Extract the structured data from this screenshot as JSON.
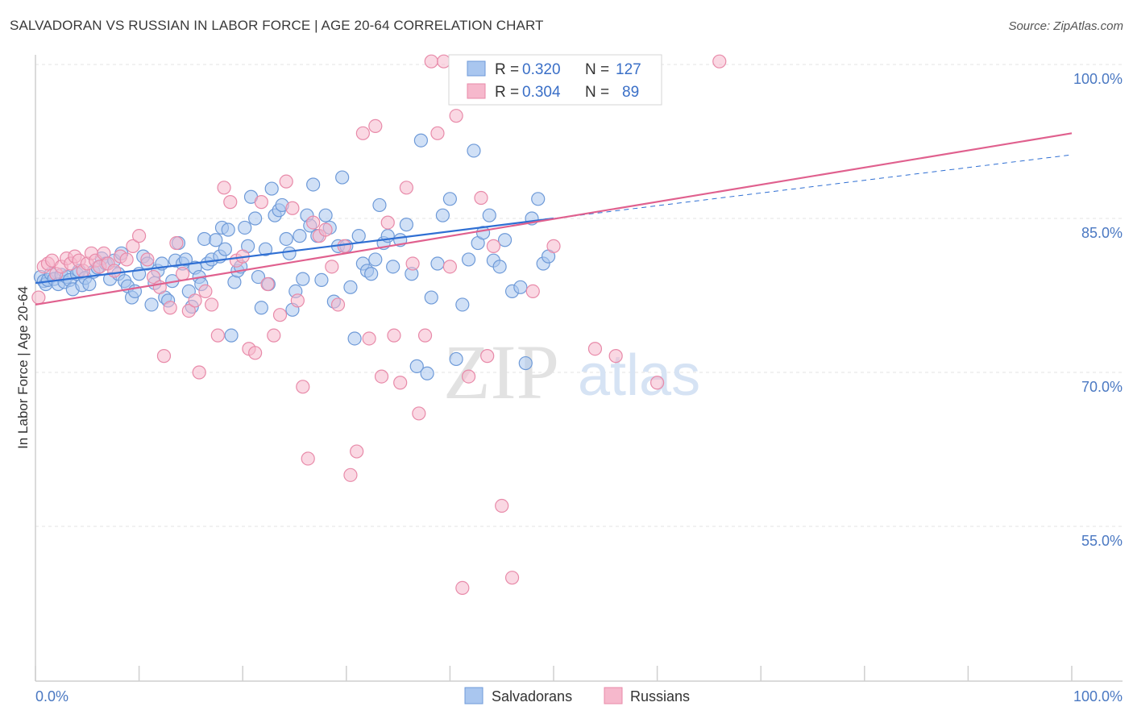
{
  "header": {
    "title": "SALVADORAN VS RUSSIAN IN LABOR FORCE | AGE 20-64 CORRELATION CHART",
    "source": "Source: ZipAtlas.com"
  },
  "watermark": {
    "zip": "ZIP",
    "atlas": "atlas"
  },
  "chart_data": {
    "type": "scatter",
    "ylabel": "In Labor Force | Age 20-64",
    "xlim": [
      0,
      100
    ],
    "ylim": [
      41,
      101
    ],
    "x_tick_labels": [
      "0.0%",
      "100.0%"
    ],
    "y_ticks": [
      55,
      70,
      85,
      100
    ],
    "y_tick_labels": [
      "55.0%",
      "70.0%",
      "85.0%",
      "100.0%"
    ],
    "grid": true,
    "legend_position": "top-center",
    "legend": [
      {
        "name": "Salvadorans",
        "r_label": "R =",
        "r_value": "0.320",
        "n_label": "N =",
        "n_value": "127"
      },
      {
        "name": "Russians",
        "r_label": "R =",
        "r_value": "0.304",
        "n_label": "N =",
        "n_value": "89"
      }
    ],
    "colors": {
      "Salvadorans": {
        "fill": "#a9c6ef",
        "stroke": "#6e9ad8",
        "line": "#2f6fd3"
      },
      "Russians": {
        "fill": "#f6b8cc",
        "stroke": "#e88aa9",
        "line": "#e0608e"
      }
    },
    "series": [
      {
        "name": "Salvadorans",
        "trend": {
          "x0": 0,
          "y0": 78.7,
          "x1": 50,
          "y1": 85.0,
          "dash_to_x": 100,
          "dash_to_y": 91.2
        },
        "points": [
          [
            0.5,
            79.3
          ],
          [
            0.8,
            78.9
          ],
          [
            1.0,
            78.6
          ],
          [
            1.2,
            79.0
          ],
          [
            1.5,
            79.6
          ],
          [
            1.8,
            79.1
          ],
          [
            2.2,
            78.6
          ],
          [
            2.5,
            79.5
          ],
          [
            2.8,
            78.8
          ],
          [
            3.0,
            79.3
          ],
          [
            3.3,
            79.0
          ],
          [
            3.6,
            78.1
          ],
          [
            4.0,
            79.6
          ],
          [
            4.2,
            79.9
          ],
          [
            4.5,
            78.5
          ],
          [
            4.8,
            79.2
          ],
          [
            5.2,
            78.6
          ],
          [
            5.6,
            79.8
          ],
          [
            6.0,
            80.2
          ],
          [
            6.4,
            81.1
          ],
          [
            6.8,
            80.6
          ],
          [
            7.2,
            79.1
          ],
          [
            7.6,
            80.9
          ],
          [
            8.0,
            79.6
          ],
          [
            8.3,
            81.6
          ],
          [
            8.6,
            78.9
          ],
          [
            8.9,
            78.4
          ],
          [
            9.3,
            77.3
          ],
          [
            9.6,
            77.9
          ],
          [
            10.0,
            79.6
          ],
          [
            10.4,
            81.3
          ],
          [
            10.8,
            80.6
          ],
          [
            11.2,
            76.6
          ],
          [
            11.5,
            78.7
          ],
          [
            11.8,
            79.9
          ],
          [
            12.2,
            80.6
          ],
          [
            12.5,
            77.3
          ],
          [
            12.8,
            77.0
          ],
          [
            13.2,
            78.9
          ],
          [
            13.5,
            80.9
          ],
          [
            13.8,
            82.6
          ],
          [
            14.2,
            80.6
          ],
          [
            14.5,
            81.0
          ],
          [
            14.8,
            77.9
          ],
          [
            15.1,
            76.4
          ],
          [
            15.4,
            80.2
          ],
          [
            15.8,
            79.3
          ],
          [
            16.0,
            78.6
          ],
          [
            16.3,
            83.0
          ],
          [
            16.6,
            80.6
          ],
          [
            17.0,
            81.0
          ],
          [
            17.4,
            82.9
          ],
          [
            17.8,
            81.3
          ],
          [
            18.0,
            84.1
          ],
          [
            18.3,
            82.0
          ],
          [
            18.6,
            83.9
          ],
          [
            18.9,
            73.6
          ],
          [
            19.2,
            78.8
          ],
          [
            19.5,
            79.9
          ],
          [
            19.8,
            80.3
          ],
          [
            20.2,
            84.1
          ],
          [
            20.5,
            82.3
          ],
          [
            20.8,
            87.1
          ],
          [
            21.2,
            85.0
          ],
          [
            21.5,
            79.3
          ],
          [
            21.8,
            76.3
          ],
          [
            22.2,
            82.0
          ],
          [
            22.5,
            78.6
          ],
          [
            22.8,
            87.9
          ],
          [
            23.1,
            85.3
          ],
          [
            23.5,
            85.8
          ],
          [
            23.8,
            86.3
          ],
          [
            24.2,
            83.0
          ],
          [
            24.5,
            81.6
          ],
          [
            24.8,
            76.1
          ],
          [
            25.1,
            77.9
          ],
          [
            25.5,
            83.3
          ],
          [
            25.8,
            79.1
          ],
          [
            26.2,
            85.3
          ],
          [
            26.5,
            84.3
          ],
          [
            26.8,
            88.3
          ],
          [
            27.2,
            83.3
          ],
          [
            27.6,
            79.0
          ],
          [
            28.0,
            85.3
          ],
          [
            28.4,
            84.1
          ],
          [
            28.8,
            76.9
          ],
          [
            29.2,
            82.3
          ],
          [
            29.6,
            89.0
          ],
          [
            30.0,
            82.3
          ],
          [
            30.4,
            78.3
          ],
          [
            30.8,
            73.3
          ],
          [
            31.2,
            83.3
          ],
          [
            31.6,
            80.6
          ],
          [
            32.0,
            79.9
          ],
          [
            32.4,
            79.6
          ],
          [
            32.8,
            81.0
          ],
          [
            33.2,
            86.3
          ],
          [
            33.6,
            82.6
          ],
          [
            34.0,
            83.3
          ],
          [
            34.5,
            80.3
          ],
          [
            35.2,
            82.9
          ],
          [
            35.8,
            84.4
          ],
          [
            36.3,
            79.6
          ],
          [
            36.8,
            70.6
          ],
          [
            37.2,
            92.6
          ],
          [
            37.8,
            69.9
          ],
          [
            38.2,
            77.3
          ],
          [
            38.8,
            80.6
          ],
          [
            39.3,
            85.3
          ],
          [
            40.0,
            86.9
          ],
          [
            40.6,
            71.3
          ],
          [
            41.2,
            76.6
          ],
          [
            41.8,
            81.0
          ],
          [
            42.3,
            91.6
          ],
          [
            42.7,
            82.6
          ],
          [
            43.2,
            83.6
          ],
          [
            43.8,
            85.3
          ],
          [
            44.2,
            80.9
          ],
          [
            44.8,
            80.3
          ],
          [
            45.3,
            82.9
          ],
          [
            46.0,
            77.9
          ],
          [
            46.8,
            78.3
          ],
          [
            47.3,
            70.9
          ],
          [
            47.9,
            85.0
          ],
          [
            48.5,
            86.9
          ],
          [
            49.0,
            80.6
          ],
          [
            49.5,
            81.3
          ]
        ]
      },
      {
        "name": "Russians",
        "trend": {
          "x0": 0,
          "y0": 76.6,
          "x1": 100,
          "y1": 93.3
        },
        "points": [
          [
            0.3,
            77.3
          ],
          [
            0.8,
            80.3
          ],
          [
            1.2,
            80.6
          ],
          [
            1.6,
            80.9
          ],
          [
            2.0,
            79.6
          ],
          [
            2.5,
            80.3
          ],
          [
            3.0,
            81.1
          ],
          [
            3.4,
            80.6
          ],
          [
            3.8,
            81.3
          ],
          [
            4.2,
            80.9
          ],
          [
            4.6,
            79.9
          ],
          [
            5.0,
            80.6
          ],
          [
            5.4,
            81.6
          ],
          [
            5.8,
            80.9
          ],
          [
            6.2,
            80.3
          ],
          [
            6.6,
            81.6
          ],
          [
            7.0,
            80.6
          ],
          [
            7.6,
            79.9
          ],
          [
            8.2,
            81.3
          ],
          [
            8.8,
            81.0
          ],
          [
            9.4,
            82.3
          ],
          [
            10.0,
            83.3
          ],
          [
            10.8,
            81.0
          ],
          [
            11.4,
            79.3
          ],
          [
            12.0,
            78.3
          ],
          [
            12.4,
            71.6
          ],
          [
            13.0,
            76.3
          ],
          [
            13.6,
            82.6
          ],
          [
            14.2,
            79.6
          ],
          [
            14.8,
            76.0
          ],
          [
            15.4,
            77.0
          ],
          [
            15.8,
            70.0
          ],
          [
            16.4,
            77.9
          ],
          [
            17.0,
            76.6
          ],
          [
            17.6,
            73.6
          ],
          [
            18.2,
            88.0
          ],
          [
            18.8,
            86.6
          ],
          [
            19.4,
            80.9
          ],
          [
            20.0,
            81.3
          ],
          [
            20.6,
            72.3
          ],
          [
            21.2,
            71.9
          ],
          [
            21.8,
            86.6
          ],
          [
            22.4,
            78.6
          ],
          [
            23.0,
            73.6
          ],
          [
            23.6,
            75.6
          ],
          [
            24.2,
            88.6
          ],
          [
            24.8,
            86.0
          ],
          [
            25.3,
            77.0
          ],
          [
            25.8,
            68.6
          ],
          [
            26.3,
            61.6
          ],
          [
            26.8,
            84.6
          ],
          [
            27.4,
            83.3
          ],
          [
            28.0,
            83.9
          ],
          [
            28.6,
            80.3
          ],
          [
            29.2,
            76.6
          ],
          [
            29.8,
            82.3
          ],
          [
            30.4,
            60.0
          ],
          [
            31.0,
            62.3
          ],
          [
            31.6,
            93.3
          ],
          [
            32.2,
            73.3
          ],
          [
            32.8,
            94.0
          ],
          [
            33.4,
            69.6
          ],
          [
            34.0,
            84.6
          ],
          [
            34.6,
            73.6
          ],
          [
            35.2,
            69.0
          ],
          [
            35.8,
            88.0
          ],
          [
            36.4,
            80.6
          ],
          [
            37.0,
            66.0
          ],
          [
            37.6,
            73.6
          ],
          [
            38.2,
            100.3
          ],
          [
            38.8,
            93.3
          ],
          [
            39.4,
            100.3
          ],
          [
            40.0,
            80.3
          ],
          [
            40.6,
            95.0
          ],
          [
            41.2,
            49.0
          ],
          [
            41.8,
            69.6
          ],
          [
            42.4,
            100.3
          ],
          [
            43.0,
            87.0
          ],
          [
            43.6,
            71.6
          ],
          [
            44.2,
            82.3
          ],
          [
            45.0,
            57.0
          ],
          [
            46.0,
            50.0
          ],
          [
            48.0,
            77.9
          ],
          [
            50.0,
            82.3
          ],
          [
            52.0,
            100.3
          ],
          [
            54.0,
            72.3
          ],
          [
            56.0,
            71.6
          ],
          [
            60.0,
            69.0
          ],
          [
            66.0,
            100.3
          ]
        ]
      }
    ]
  }
}
